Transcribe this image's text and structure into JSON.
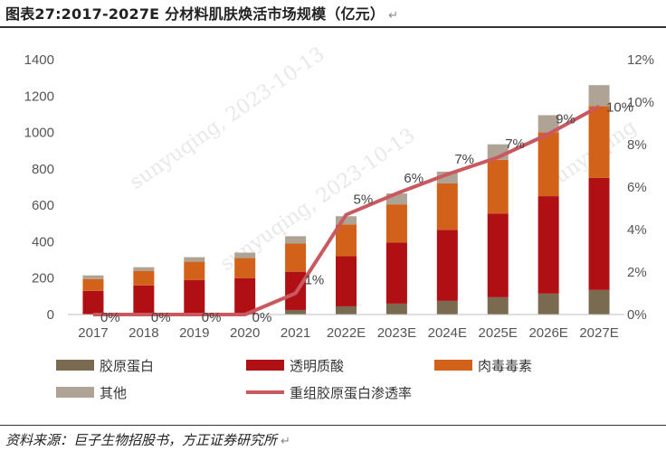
{
  "header": {
    "title": "图表27:2017-2027E 分材料肌肤焕活市场规模（亿元）",
    "return_mark": "↵"
  },
  "footer": {
    "source": "资料来源：巨子生物招股书，方正证券研究所",
    "return_mark": "↵"
  },
  "watermarks": [
    "sunyuqing,  2023-10-13",
    "sunyuqing,  2023-10-13",
    "sunyuqing"
  ],
  "chart_data": {
    "type": "bar",
    "subtype": "stacked-bar-with-line",
    "title": "2017-2027E 分材料肌肤焕活市场规模（亿元）",
    "categories": [
      "2017",
      "2018",
      "2019",
      "2020",
      "2021",
      "2022E",
      "2023E",
      "2024E",
      "2025E",
      "2026E",
      "2027E"
    ],
    "left_axis": {
      "ylim": [
        0,
        1400
      ],
      "ticks": [
        0,
        200,
        400,
        600,
        800,
        1000,
        1200,
        1400
      ],
      "tick_labels": [
        "0",
        "200",
        "400",
        "600",
        "800",
        "1000",
        "1200",
        "1400"
      ]
    },
    "right_axis": {
      "ylim": [
        0,
        12
      ],
      "ticks": [
        0,
        2,
        4,
        6,
        8,
        10,
        12
      ],
      "tick_labels": [
        "0%",
        "2%",
        "4%",
        "6%",
        "8%",
        "10%",
        "12%"
      ]
    },
    "series": [
      {
        "name": "胶原蛋白",
        "axis": "left",
        "color": "#7a6a50",
        "values": [
          0,
          0,
          0,
          0,
          25,
          45,
          60,
          75,
          95,
          115,
          135
        ]
      },
      {
        "name": "透明质酸",
        "axis": "left",
        "color": "#b01014",
        "values": [
          130,
          160,
          190,
          200,
          210,
          275,
          335,
          390,
          460,
          535,
          615
        ]
      },
      {
        "name": "肉毒毒素",
        "axis": "left",
        "color": "#d2611a",
        "values": [
          65,
          80,
          100,
          110,
          155,
          175,
          210,
          255,
          295,
          350,
          395
        ]
      },
      {
        "name": "其他",
        "axis": "left",
        "color": "#aea394",
        "values": [
          20,
          20,
          25,
          30,
          40,
          45,
          60,
          65,
          85,
          95,
          115
        ]
      },
      {
        "name": "重组胶原蛋白渗透率",
        "axis": "right",
        "type": "line",
        "color": "#c9595f",
        "values": [
          0,
          0,
          0,
          0,
          1,
          4.7,
          5.7,
          6.6,
          7.4,
          8.5,
          9.8
        ]
      }
    ],
    "point_labels": [
      "0%",
      "0%",
      "0%",
      "0%",
      "1%",
      "5%",
      "6%",
      "7%",
      "7%",
      "9%",
      "10%"
    ],
    "legend": [
      "胶原蛋白",
      "透明质酸",
      "肉毒毒素",
      "其他",
      "重组胶原蛋白渗透率"
    ]
  }
}
